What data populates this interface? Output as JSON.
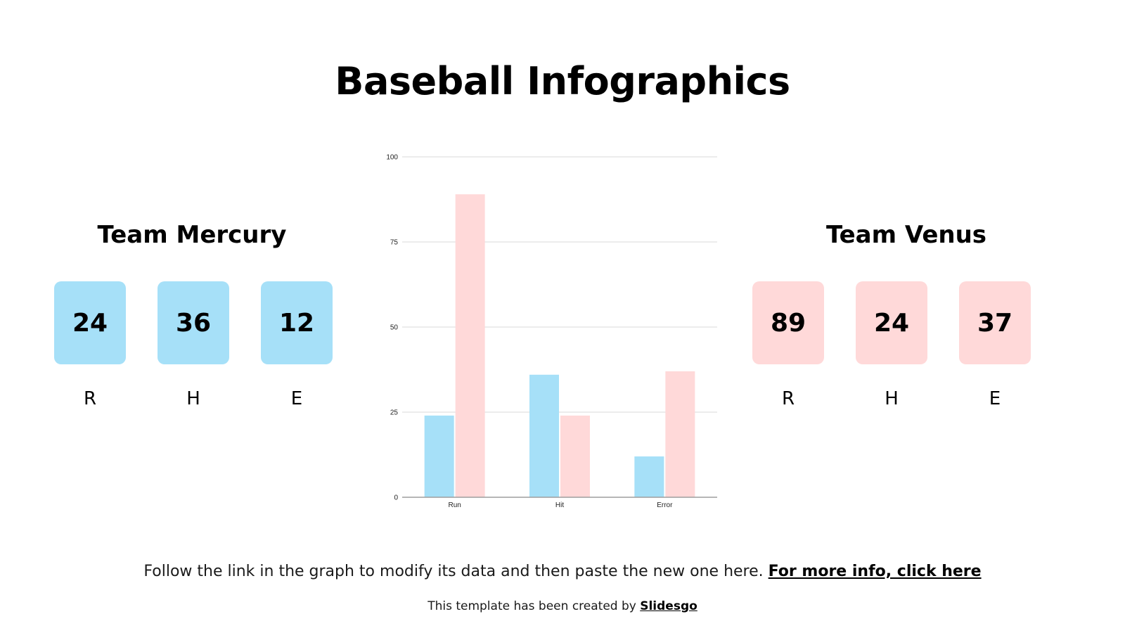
{
  "title": "Baseball Infographics",
  "colors": {
    "mercury": "#a6e0f8",
    "venus": "#ffd9d9",
    "gridline": "#d9d9d9",
    "axis": "#9e9e9e"
  },
  "teams": [
    {
      "name": "Team Mercury",
      "stats": [
        {
          "label": "R",
          "value": "24"
        },
        {
          "label": "H",
          "value": "36"
        },
        {
          "label": "E",
          "value": "12"
        }
      ]
    },
    {
      "name": "Team Venus",
      "stats": [
        {
          "label": "R",
          "value": "89"
        },
        {
          "label": "H",
          "value": "24"
        },
        {
          "label": "E",
          "value": "37"
        }
      ]
    }
  ],
  "chart_data": {
    "type": "bar",
    "categories": [
      "Run",
      "Hit",
      "Error"
    ],
    "series": [
      {
        "values": [
          24,
          36,
          12
        ],
        "color": "#a6e0f8"
      },
      {
        "values": [
          89,
          24,
          37
        ],
        "color": "#ffd9d9"
      }
    ],
    "ylim": [
      0,
      100
    ],
    "yticks": [
      0,
      25,
      50,
      75,
      100
    ],
    "grid": true
  },
  "footer": {
    "text": "Follow the link in the graph to modify its data and then paste the new one here.",
    "link_label": "For more info, click here",
    "credit_text": "This template has been created by",
    "credit_link": "Slidesgo"
  }
}
